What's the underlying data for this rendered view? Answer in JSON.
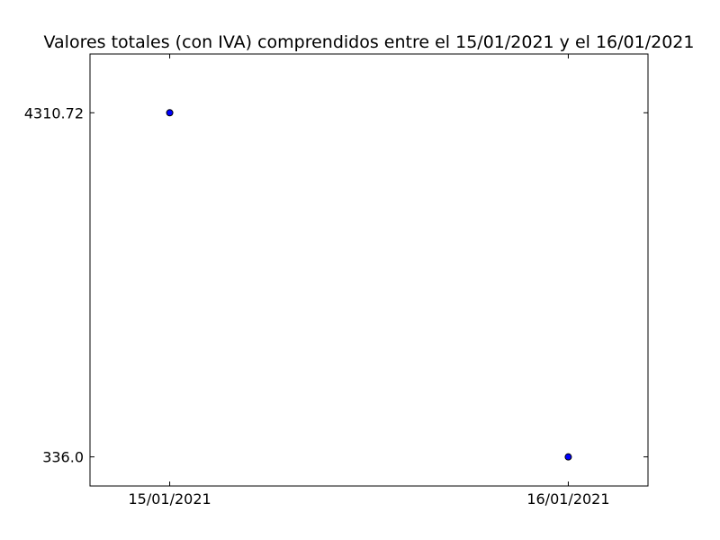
{
  "chart_data": {
    "type": "scatter",
    "title": "Valores totales (con IVA) comprendidos entre el 15/01/2021 y el 16/01/2021",
    "xlabel": "",
    "ylabel": "",
    "x": [
      "15/01/2021",
      "16/01/2021"
    ],
    "y": [
      4310.72,
      336.0
    ],
    "x_tick_labels": [
      "15/01/2021",
      "16/01/2021"
    ],
    "y_tick_labels": [
      "4310.72",
      "336.0"
    ],
    "y_ticks": [
      4310.72,
      336.0
    ],
    "grid": false,
    "legend": "none",
    "marker_color": "#0000ff",
    "marker_edge_color": "#000000"
  }
}
